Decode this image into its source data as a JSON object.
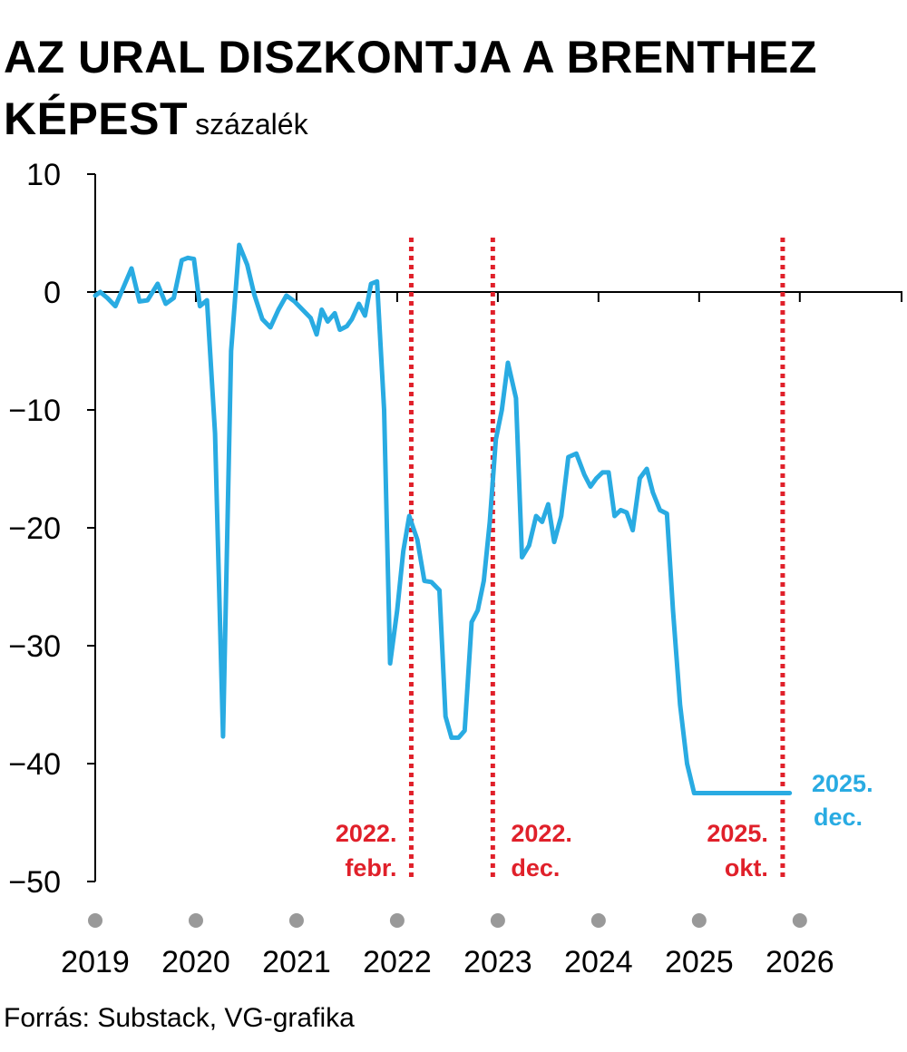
{
  "chart_data": {
    "type": "line",
    "title": "AZ URAL DISZKONTJA A BRENTHEZ KÉPEST",
    "title_line1": "AZ URAL DISZKONTJA A BRENTHEZ",
    "title_line2": "KÉPEST",
    "unit": "százalék",
    "xlabel": "",
    "ylabel": "százalék",
    "ylim": [
      -50,
      10
    ],
    "yticks": [
      10,
      0,
      -10,
      -20,
      -30,
      -40,
      -50
    ],
    "ytick_labels": [
      "10",
      "0",
      "−10",
      "−20",
      "−30",
      "−40",
      "−50"
    ],
    "xlim": [
      2019,
      2027.02
    ],
    "xticks": [
      2019,
      2020,
      2021,
      2022,
      2023,
      2024,
      2025,
      2026
    ],
    "xtick_labels": [
      "2019",
      "2020",
      "2021",
      "2022",
      "2023",
      "2024",
      "2025",
      "2026"
    ],
    "series": [
      {
        "name": "Ural diszkont a Brenthez képest",
        "color": "#29abe2",
        "x": [
          2019.0,
          2019.05,
          2019.12,
          2019.2,
          2019.28,
          2019.36,
          2019.44,
          2019.52,
          2019.62,
          2019.7,
          2019.78,
          2019.86,
          2019.92,
          2019.98,
          2020.04,
          2020.11,
          2020.19,
          2020.27,
          2020.35,
          2020.43,
          2020.51,
          2020.58,
          2020.66,
          2020.74,
          2020.82,
          2020.9,
          2020.98,
          2021.06,
          2021.14,
          2021.2,
          2021.25,
          2021.31,
          2021.38,
          2021.43,
          2021.5,
          2021.55,
          2021.62,
          2021.68,
          2021.74,
          2021.8,
          2021.87,
          2021.93,
          2022.0,
          2022.06,
          2022.12,
          2022.2,
          2022.27,
          2022.34,
          2022.42,
          2022.48,
          2022.54,
          2022.61,
          2022.67,
          2022.74,
          2022.8,
          2022.86,
          2022.92,
          2022.98,
          2023.04,
          2023.1,
          2023.18,
          2023.24,
          2023.31,
          2023.38,
          2023.44,
          2023.5,
          2023.56,
          2023.63,
          2023.7,
          2023.78,
          2023.86,
          2023.92,
          2023.98,
          2024.04,
          2024.1,
          2024.16,
          2024.22,
          2024.28,
          2024.34,
          2024.41,
          2024.48,
          2024.54,
          2024.61,
          2024.68,
          2024.74,
          2024.81,
          2024.88,
          2024.95,
          2025.02,
          2025.09,
          2025.15,
          2025.21,
          2025.27,
          2025.33,
          2025.4,
          2025.46,
          2025.52,
          2025.58,
          2025.64,
          2025.7,
          2025.76,
          2025.83,
          2025.86,
          2025.9,
          2025.96,
          2026.0
        ],
        "values": [
          -0.3,
          0.0,
          -0.5,
          -1.2,
          0.4,
          2.0,
          -0.8,
          -0.7,
          0.7,
          -1.0,
          -0.5,
          2.7,
          2.9,
          2.8,
          -1.2,
          -0.7,
          -12.0,
          -37.7,
          -5.0,
          4.0,
          2.3,
          -0.2,
          -2.3,
          -3.0,
          -1.5,
          -0.3,
          -0.8,
          -1.5,
          -2.2,
          -3.6,
          -1.5,
          -2.5,
          -1.8,
          -3.2,
          -2.9,
          -2.3,
          -1.0,
          -2.0,
          0.7,
          0.9,
          -10.0,
          -31.5,
          -27.0,
          -22.0,
          -19.0,
          -21.0,
          -24.5,
          -24.6,
          -25.3,
          -36.0,
          -37.8,
          -37.8,
          -37.2,
          -28.0,
          -27.0,
          -24.5,
          -19.5,
          -12.5,
          -10.0,
          -6.0,
          -9.0,
          -22.5,
          -21.5,
          -19.0,
          -19.5,
          -18.0,
          -21.2,
          -19.0,
          -14.0,
          -13.7,
          -15.5,
          -16.5,
          -15.8,
          -15.3,
          -15.3,
          -19.0,
          -18.5,
          -18.7,
          -20.2,
          -15.8,
          -15.0,
          -17.0,
          -18.5,
          -18.8,
          -27.0,
          -35.0,
          -40.0,
          -42.5,
          -42.5,
          -42.5,
          -42.5,
          -42.5,
          -42.5,
          -42.5,
          -42.5,
          -42.5,
          -42.5,
          -42.5,
          -42.5,
          -42.5,
          -42.5,
          -42.5,
          -42.5,
          -42.5,
          -42.5,
          -42.5
        ]
      }
    ],
    "vlines": [
      {
        "x": 2022.14,
        "label_line1": "2022.",
        "label_line2": "febr.",
        "color": "#e0202a"
      },
      {
        "x": 2022.95,
        "label_line1": "2022.",
        "label_line2": "dec.",
        "color": "#e0202a"
      },
      {
        "x": 2025.83,
        "label_line1": "2025.",
        "label_line2": "okt.",
        "color": "#e0202a"
      }
    ],
    "end_label": {
      "label_line1": "2025.",
      "label_line2": "dec.",
      "color": "#29abe2"
    },
    "source": "Forrás: Substack, VG-grafika"
  }
}
